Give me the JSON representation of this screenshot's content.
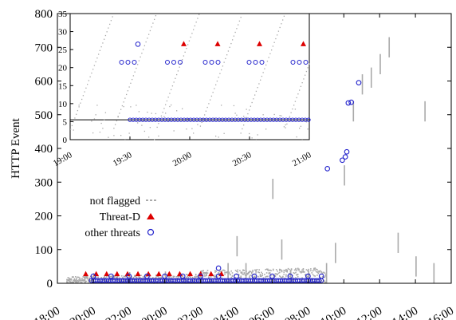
{
  "chart_data": {
    "type": "scatter",
    "ylabel": "HTTP Event",
    "xlabel": "",
    "x_unit": "time of day",
    "xlim": [
      "18:00",
      "16:00 (+1 day)"
    ],
    "ylim": [
      0,
      800
    ],
    "x_ticks": [
      "18:00",
      "20:00",
      "22:00",
      "00:00",
      "02:00",
      "04:00",
      "06:00",
      "08:00",
      "10:00",
      "12:00",
      "14:00",
      "16:00"
    ],
    "y_ticks": [
      "0",
      "100",
      "200",
      "300",
      "400",
      "500",
      "600",
      "700",
      "800"
    ],
    "colors": {
      "not_flagged": "#aaaaaa",
      "threat_d": "#dd0000",
      "other_threats": "#2222cc"
    },
    "legend": {
      "placement": "lower-left",
      "entries": [
        "not flagged",
        "Threat-D",
        "other threats"
      ]
    },
    "series": [
      {
        "name": "not flagged",
        "marker": "dot",
        "description": "dense band from 19:30 to 09:00 with sparse points after",
        "points": [
          [
            "19:30",
            22
          ],
          [
            "20:00",
            30
          ],
          [
            "22:00",
            33
          ],
          [
            "00:00",
            35
          ],
          [
            "02:00",
            38
          ],
          [
            "03:30",
            60
          ],
          [
            "04:00",
            140
          ],
          [
            "04:30",
            60
          ],
          [
            "06:00",
            310
          ],
          [
            "06:30",
            130
          ],
          [
            "07:00",
            40
          ],
          [
            "08:00",
            35
          ],
          [
            "09:00",
            60
          ],
          [
            "09:30",
            120
          ],
          [
            "10:00",
            350
          ],
          [
            "10:30",
            540
          ],
          [
            "11:00",
            620
          ],
          [
            "11:30",
            640
          ],
          [
            "12:00",
            680
          ],
          [
            "12:30",
            730
          ],
          [
            "13:00",
            150
          ],
          [
            "14:00",
            80
          ],
          [
            "14:30",
            540
          ],
          [
            "15:00",
            60
          ]
        ]
      },
      {
        "name": "Threat-D",
        "marker": "triangle",
        "points": [
          [
            "19:35",
            27
          ],
          [
            "20:10",
            27
          ],
          [
            "20:45",
            27
          ],
          [
            "21:20",
            27
          ],
          [
            "21:55",
            27
          ],
          [
            "22:30",
            27
          ],
          [
            "23:05",
            27
          ],
          [
            "23:40",
            27
          ],
          [
            "00:15",
            27
          ],
          [
            "00:50",
            27
          ],
          [
            "01:25",
            27
          ],
          [
            "02:00",
            27
          ],
          [
            "02:35",
            27
          ],
          [
            "03:10",
            27
          ]
        ]
      },
      {
        "name": "other threats",
        "marker": "circle",
        "points": [
          [
            "20:00",
            21
          ],
          [
            "21:00",
            21
          ],
          [
            "22:00",
            21
          ],
          [
            "23:00",
            21
          ],
          [
            "00:00",
            21
          ],
          [
            "01:00",
            21
          ],
          [
            "02:00",
            21
          ],
          [
            "03:00",
            21
          ],
          [
            "04:00",
            21
          ],
          [
            "05:00",
            21
          ],
          [
            "06:00",
            21
          ],
          [
            "07:00",
            21
          ],
          [
            "08:00",
            21
          ],
          [
            "08:45",
            21
          ],
          [
            "03:00",
            45
          ],
          [
            "09:05",
            340
          ],
          [
            "09:55",
            365
          ],
          [
            "10:05",
            375
          ],
          [
            "10:10",
            390
          ],
          [
            "10:15",
            535
          ],
          [
            "10:25",
            537
          ],
          [
            "10:50",
            595
          ]
        ]
      }
    ],
    "inset": {
      "xlim": [
        "19:00",
        "21:00"
      ],
      "ylim": [
        0,
        35
      ],
      "x_ticks": [
        "19:00",
        "19:30",
        "20:00",
        "20:30",
        "21:00"
      ],
      "y_ticks": [
        "0",
        "5",
        "10",
        "15",
        "20",
        "25",
        "30",
        "35"
      ],
      "reference_line_y": 5.5,
      "threat_d_points": [
        [
          "19:57",
          26.5
        ],
        [
          "20:14",
          26.5
        ],
        [
          "20:35",
          26.5
        ],
        [
          "20:57",
          26.5
        ]
      ],
      "other_threats_low_y": 5.5,
      "other_threats_cluster_y": 21.5,
      "other_threats_clusters": [
        "19:29",
        "19:52",
        "20:11",
        "20:33",
        "20:55"
      ],
      "other_threats_extra": [
        [
          "19:34",
          26.5
        ]
      ]
    }
  }
}
